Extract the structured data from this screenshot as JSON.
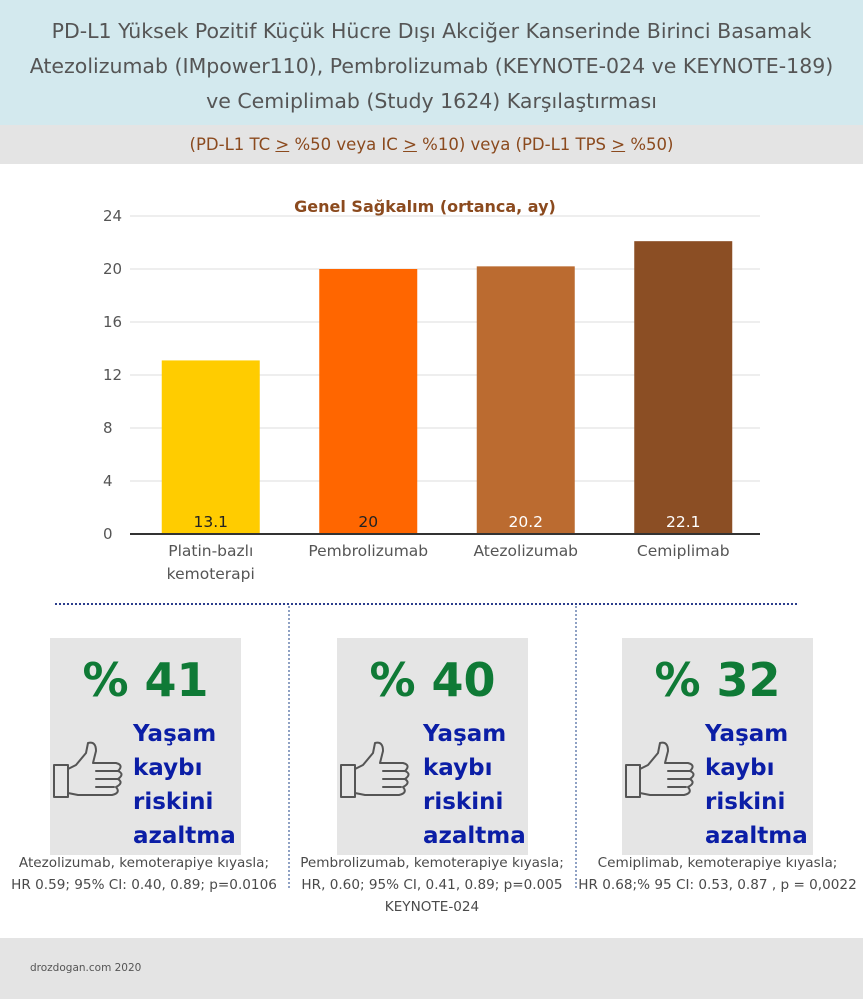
{
  "header": {
    "title_lines": [
      "PD-L1 Yüksek Pozitif Küçük Hücre Dışı Akciğer Kanserinde Birinci Basamak",
      "Atezolizumab (IMpower110), Pembrolizumab (KEYNOTE-024 ve KEYNOTE-189)",
      "ve Cemiplimab (Study 1624) Karşılaştırması"
    ],
    "subtitle": {
      "p1": "(PD-L1 TC ",
      "ge1": ">",
      "p2": " %50 veya IC ",
      "ge2": ">",
      "p3": " %10) veya (PD-L1 TPS ",
      "ge3": ">",
      "p4": " %50)"
    }
  },
  "chart_data": {
    "type": "bar",
    "title": "Genel Sağkalım (ortanca, ay)",
    "categories": [
      [
        "Platin-bazlı",
        "kemoterapi"
      ],
      [
        "Pembrolizumab"
      ],
      [
        "Atezolizumab"
      ],
      [
        "Cemiplimab"
      ]
    ],
    "values": [
      13.1,
      20,
      20.2,
      22.1
    ],
    "value_labels": [
      "13.1",
      "20",
      "20.2",
      "22.1"
    ],
    "colors": [
      "#ffcc00",
      "#ff6600",
      "#bb6b30",
      "#8b4e24"
    ],
    "label_colors": [
      "#222222",
      "#222222",
      "#ffffff",
      "#ffffff"
    ],
    "ylim": [
      0,
      24
    ],
    "yticks": [
      "0",
      "4",
      "8",
      "12",
      "16",
      "20",
      "24"
    ],
    "grid": true,
    "legend": "none"
  },
  "cards": [
    {
      "percent": "% 41",
      "risk_lines": [
        "Yaşam",
        "kaybı",
        "riskini",
        "azaltma"
      ],
      "note_lines": [
        "Atezolizumab, kemoterapiye kıyasla;",
        "HR 0.59; 95% CI: 0.40, 0.89; p=0.0106"
      ],
      "icon": "thumbs-up-icon"
    },
    {
      "percent": "% 40",
      "risk_lines": [
        "Yaşam",
        "kaybı",
        "riskini",
        "azaltma"
      ],
      "note_lines": [
        "Pembrolizumab, kemoterapiye kıyasla;",
        "HR, 0.60; 95% CI, 0.41, 0.89; p=0.005",
        "KEYNOTE-024"
      ],
      "icon": "thumbs-up-icon"
    },
    {
      "percent": "% 32",
      "risk_lines": [
        "Yaşam",
        "kaybı",
        "riskini",
        "azaltma"
      ],
      "note_lines": [
        "Cemiplimab, kemoterapiye kıyasla;",
        "HR 0.68;% 95 CI: 0.53, 0.87 , p = 0,0022"
      ],
      "icon": "thumbs-up-icon"
    }
  ],
  "footer": {
    "credit": "drozdogan.com 2020"
  }
}
